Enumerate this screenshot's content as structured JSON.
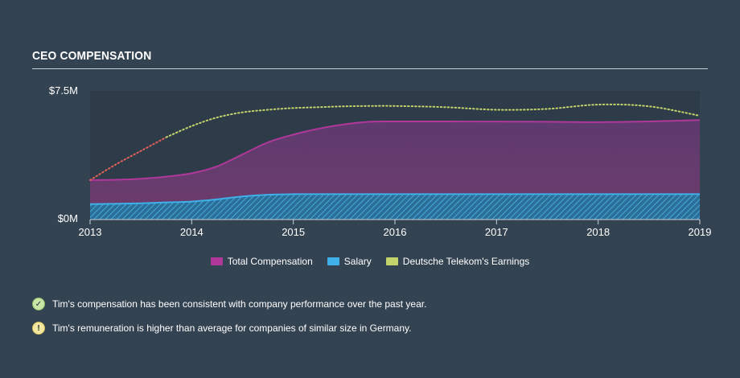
{
  "section": {
    "title": "CEO COMPENSATION"
  },
  "chart_data": {
    "type": "area",
    "x_unit": "year",
    "x": [
      2013.0,
      2013.25,
      2013.5,
      2013.75,
      2014.0,
      2014.25,
      2014.5,
      2014.75,
      2015.0,
      2015.25,
      2015.5,
      2015.75,
      2016.0,
      2016.5,
      2017.0,
      2017.5,
      2018.0,
      2018.5,
      2019.0
    ],
    "x_ticks": [
      2013,
      2014,
      2015,
      2016,
      2017,
      2018,
      2019
    ],
    "x_tick_labels": [
      "2013",
      "2014",
      "2015",
      "2016",
      "2017",
      "2018",
      "2019"
    ],
    "ylim": [
      0,
      7.5
    ],
    "y_tick_labels": [
      {
        "value": 0,
        "label": "$0M"
      },
      {
        "value": 7.5,
        "label": "$7.5M"
      }
    ],
    "grid": false,
    "legend_position": "bottom-center",
    "series": [
      {
        "name": "Total Compensation",
        "kind": "area",
        "color": "#b0389a",
        "values": [
          2.3,
          2.32,
          2.38,
          2.5,
          2.7,
          3.1,
          3.8,
          4.5,
          4.95,
          5.3,
          5.55,
          5.7,
          5.72,
          5.72,
          5.71,
          5.7,
          5.68,
          5.72,
          5.8
        ]
      },
      {
        "name": "Salary",
        "kind": "area",
        "color": "#3fb0e8",
        "values": [
          0.9,
          0.92,
          0.95,
          1.0,
          1.05,
          1.18,
          1.35,
          1.45,
          1.48,
          1.48,
          1.48,
          1.48,
          1.48,
          1.48,
          1.48,
          1.48,
          1.48,
          1.48,
          1.48
        ]
      },
      {
        "name": "Deutsche Telekom's Earnings",
        "kind": "dotted-line",
        "color": "#c2d36a",
        "values": [
          2.3,
          3.2,
          4.0,
          4.8,
          5.45,
          5.95,
          6.25,
          6.4,
          6.5,
          6.55,
          6.6,
          6.62,
          6.62,
          6.55,
          6.4,
          6.45,
          6.7,
          6.6,
          6.05
        ]
      }
    ]
  },
  "legend": {
    "items": [
      {
        "label": "Total Compensation",
        "color": "#b0389a"
      },
      {
        "label": "Salary",
        "color": "#3fb0e8"
      },
      {
        "label": "Deutsche Telekom's Earnings",
        "color": "#c2d36a"
      }
    ]
  },
  "notes": [
    {
      "icon": "check-circle-icon",
      "status": "positive",
      "text": "Tim's compensation has been consistent with company performance over the past year."
    },
    {
      "icon": "exclamation-circle-icon",
      "status": "warning",
      "text": "Tim's remuneration is higher than average for companies of similar size in Germany."
    }
  ]
}
